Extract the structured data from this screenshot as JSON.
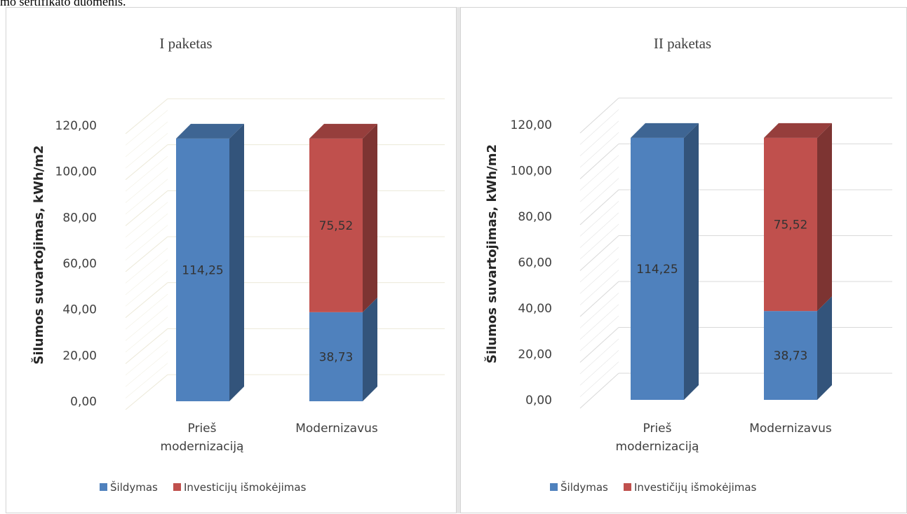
{
  "header_text": "mo sertifikato duomenis.",
  "colors": {
    "heating": "#4f81bd",
    "investment": "#c0504d"
  },
  "chart_data": [
    {
      "type": "bar",
      "stacked": true,
      "three_d": true,
      "title": "I paketas",
      "ylabel": "Šilumos suvartojimas, kWh/m2",
      "xlabel": "",
      "ylim": [
        0,
        120
      ],
      "y_ticks": [
        "0,00",
        "20,00",
        "40,00",
        "60,00",
        "80,00",
        "100,00",
        "120,00"
      ],
      "categories": [
        "Prieš modernizaciją",
        "Modernizavus"
      ],
      "series": [
        {
          "name": "Šildymas",
          "values": [
            114.25,
            38.73
          ],
          "labels": [
            "114,25",
            "38,73"
          ]
        },
        {
          "name": "Investicijų išmokėjimas",
          "values": [
            null,
            75.52
          ],
          "labels": [
            "",
            "75,52"
          ]
        }
      ],
      "legend": "bottom",
      "grid": true
    },
    {
      "type": "bar",
      "stacked": true,
      "three_d": true,
      "title": "II paketas",
      "ylabel": "Šilumos suvartojimas, kWh/m2",
      "xlabel": "",
      "ylim": [
        0,
        120
      ],
      "y_ticks": [
        "0,00",
        "20,00",
        "40,00",
        "60,00",
        "80,00",
        "100,00",
        "120,00"
      ],
      "categories": [
        "Prieš modernizaciją",
        "Modernizavus"
      ],
      "series": [
        {
          "name": "Šildymas",
          "values": [
            114.25,
            38.73
          ],
          "labels": [
            "114,25",
            "38,73"
          ]
        },
        {
          "name": "Investičijų išmokėjimas",
          "values": [
            null,
            75.52
          ],
          "labels": [
            "",
            "75,52"
          ]
        }
      ],
      "legend": "bottom",
      "grid": true
    }
  ]
}
